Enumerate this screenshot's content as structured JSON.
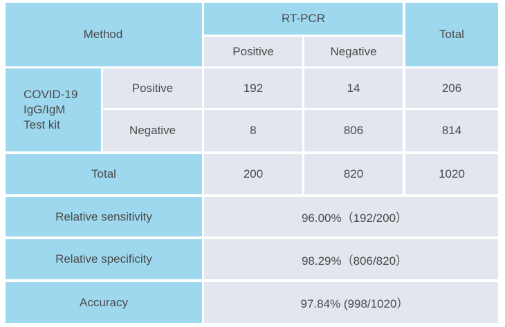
{
  "header": {
    "method": "Method",
    "rtpcr": "RT-PCR",
    "positive": "Positive",
    "negative": "Negative",
    "total": "Total"
  },
  "test_kit": {
    "line1": "COVID-19",
    "line2": "IgG/IgM",
    "line3": "Test kit"
  },
  "rows": [
    {
      "label": "Positive",
      "positive": "192",
      "negative": "14",
      "total": "206"
    },
    {
      "label": "Negative",
      "positive": "8",
      "negative": "806",
      "total": "814"
    }
  ],
  "total_row": {
    "label": "Total",
    "positive": "200",
    "negative": "820",
    "total": "1020"
  },
  "stats": [
    {
      "label": "Relative sensitivity",
      "value": "96.00%（192/200）"
    },
    {
      "label": "Relative specificity",
      "value": "98.29%（806/820）"
    },
    {
      "label": "Accuracy",
      "value": "97.84% (998/1020）"
    }
  ],
  "colors": {
    "header_blue": "#9ed8ef",
    "body_grey": "#e3e6ee",
    "text": "#4a4a4a"
  }
}
